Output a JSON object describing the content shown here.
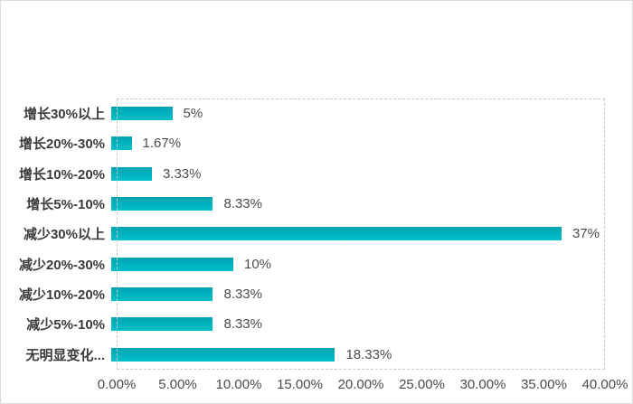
{
  "chart_data": {
    "type": "bar",
    "orientation": "horizontal",
    "title": "",
    "xlabel": "",
    "ylabel": "",
    "categories": [
      "增长30%以上",
      "增长20%-30%",
      "增长10%-20%",
      "增长5%-10%",
      "减少30%以上",
      "减少20%-30%",
      "减少10%-20%",
      "减少5%-10%",
      "无明显变化..."
    ],
    "values": [
      5,
      1.67,
      3.33,
      8.33,
      37,
      10,
      8.33,
      8.33,
      18.33
    ],
    "value_labels": [
      "5%",
      "1.67%",
      "3.33%",
      "8.33%",
      "37%",
      "10%",
      "8.33%",
      "8.33%",
      "18.33%"
    ],
    "x_ticks": [
      "0.00%",
      "5.00%",
      "10.00%",
      "15.00%",
      "20.00%",
      "25.00%",
      "30.00%",
      "35.00%",
      "40.00%"
    ],
    "xlim": [
      0,
      40
    ],
    "grid": "none",
    "legend": "none",
    "plot_border_style": "dashed"
  },
  "colors": {
    "bar_gradient_top": "#00a3b1",
    "bar_gradient_bottom": "#00c0c9",
    "plot_border": "#c9c9c9",
    "outer_border": "#dcdcdc",
    "category_text": "#3b3b3b",
    "value_text": "#4b4b4b",
    "tick_text": "#4b4b4b",
    "background": "#ffffff"
  }
}
